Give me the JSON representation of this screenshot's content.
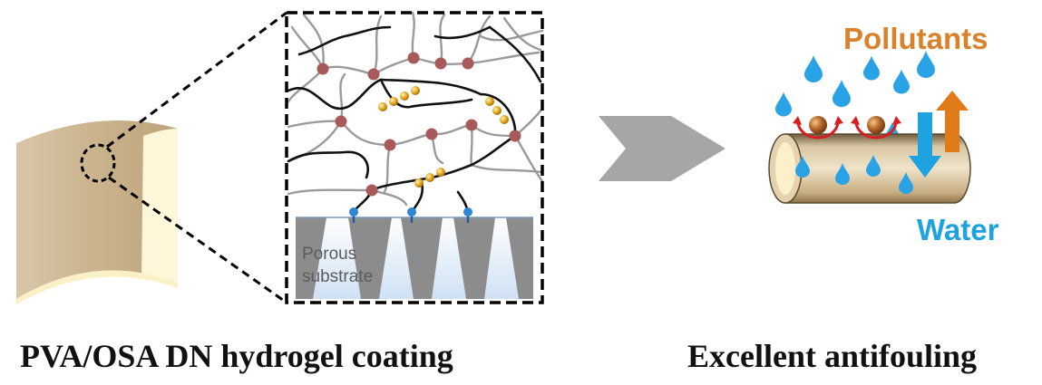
{
  "labels": {
    "substrate_line1": "Porous",
    "substrate_line2": "substrate",
    "pollutants": "Pollutants",
    "water": "Water"
  },
  "captions": {
    "left": "PVA/OSA DN hydrogel coating",
    "right": "Excellent antifouling"
  },
  "colors": {
    "pollutants_text": "#d9822b",
    "water_text": "#1fa3e0",
    "crosslink_node": "#a85a5a",
    "ionic_bead": "#e0a21a",
    "droplet": "#29a3e6",
    "substrate_pore": "#8c8c8c",
    "arrow_gray": "#a6a6a6"
  },
  "icons": [
    "coated-tube-icon",
    "zoom-arrow-icon",
    "water-droplet-icon",
    "pollutant-particle-icon",
    "up-arrow-icon",
    "down-arrow-icon"
  ]
}
